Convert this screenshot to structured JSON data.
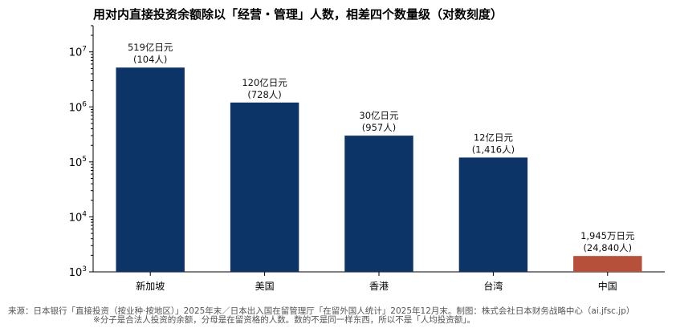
{
  "chart_data": {
    "type": "bar",
    "title": "用对内直接投资余额除以「经营・管理」人数，相差四个数量级（对数刻度）",
    "categories": [
      "新加坡",
      "美国",
      "香港",
      "台湾",
      "中国"
    ],
    "values": [
      5190000,
      1200000,
      300000,
      120000,
      1945
    ],
    "value_labels": [
      "519亿日元",
      "120亿日元",
      "30亿日元",
      "12亿日元",
      "1,945万日元"
    ],
    "count_labels": [
      "(104人)",
      "(728人)",
      "(957人)",
      "(1,416人)",
      "(24,840人)"
    ],
    "bar_colors": [
      "#0d3466",
      "#0d3466",
      "#0d3466",
      "#0d3466",
      "#b6503a"
    ],
    "yscale": "log",
    "ylim": [
      1000,
      30000000
    ],
    "y_ticks": [
      {
        "base": "10",
        "exp": "3",
        "value": 1000
      },
      {
        "base": "10",
        "exp": "4",
        "value": 10000
      },
      {
        "base": "10",
        "exp": "5",
        "value": 100000
      },
      {
        "base": "10",
        "exp": "6",
        "value": 1000000
      },
      {
        "base": "10",
        "exp": "7",
        "value": 10000000
      }
    ],
    "xlabel": "",
    "ylabel": "",
    "grid": false,
    "legend": "none"
  },
  "notes": {
    "source": "来源：日本银行「直接投资（按业种·按地区）」2025年末／日本出入国在留管理厅「在留外国人统计」2025年12月末。制图：株式会社日本财务战略中心（ai.jfsc.jp）",
    "remark": "※分子是合法人投资的余额，分母是在留资格的人数。数的不是同一样东西，所以不是「人均投资额」。"
  }
}
